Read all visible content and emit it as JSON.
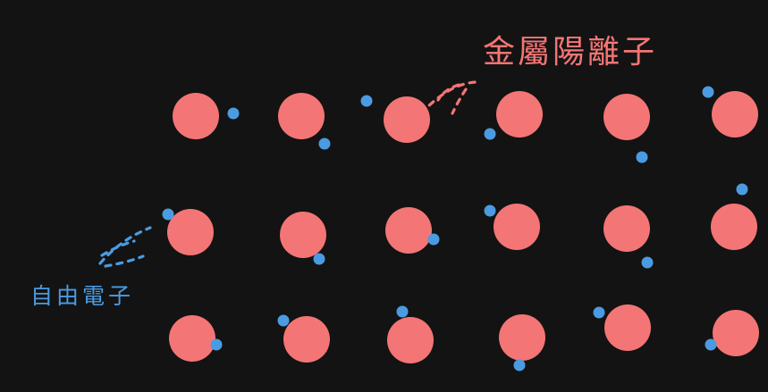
{
  "labels": {
    "metal_cation": "金屬陽離子",
    "free_electron": "自由電子"
  },
  "colors": {
    "background": "#131313",
    "cation": "#f47575",
    "electron": "#4b9be3",
    "cation_label": "#f47575",
    "electron_label": "#4b9be3"
  },
  "lattice": {
    "rows": 3,
    "columns": 6,
    "ion_count": 18,
    "electron_count": 18
  }
}
